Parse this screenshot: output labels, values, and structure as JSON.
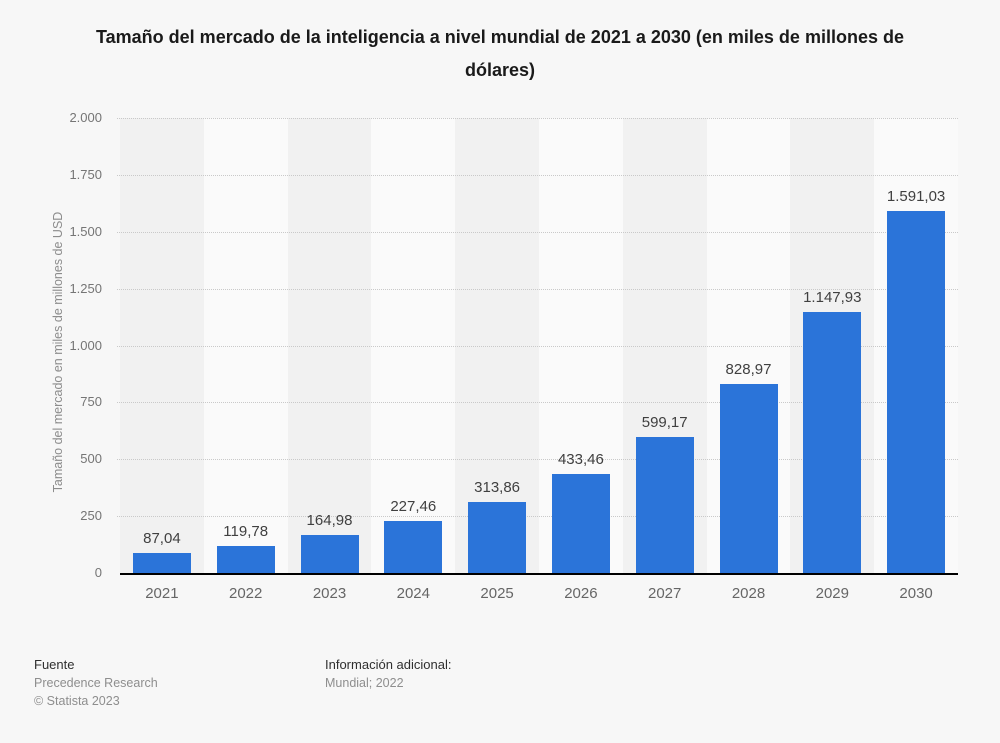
{
  "title": "Tamaño del mercado de la inteligencia a nivel mundial de 2021 a 2030 (en miles de millones de dólares)",
  "y_axis_title": "Tamaño del mercado en miles de millones de USD",
  "chart_data": {
    "type": "bar",
    "categories": [
      "2021",
      "2022",
      "2023",
      "2024",
      "2025",
      "2026",
      "2027",
      "2028",
      "2029",
      "2030"
    ],
    "values": [
      87.04,
      119.78,
      164.98,
      227.46,
      313.86,
      433.46,
      599.17,
      828.97,
      1147.93,
      1591.03
    ],
    "value_labels": [
      "87,04",
      "119,78",
      "164,98",
      "227,46",
      "313,86",
      "433,46",
      "599,17",
      "828,97",
      "1.147,93",
      "1.591,03"
    ],
    "title": "Tamaño del mercado de la inteligencia a nivel mundial de 2021 a 2030 (en miles de millones de dólares)",
    "xlabel": "",
    "ylabel": "Tamaño del mercado en miles de millones de USD",
    "ylim": [
      0,
      2000
    ],
    "y_ticks": [
      {
        "value": 2000,
        "label": "2.000"
      },
      {
        "value": 1750,
        "label": "1.750"
      },
      {
        "value": 1500,
        "label": "1.500"
      },
      {
        "value": 1250,
        "label": "1.250"
      },
      {
        "value": 1000,
        "label": "1.000"
      },
      {
        "value": 750,
        "label": "750"
      },
      {
        "value": 500,
        "label": "500"
      },
      {
        "value": 250,
        "label": "250"
      },
      {
        "value": 0,
        "label": "0"
      }
    ],
    "grid": "dotted-horizontal",
    "legend": "none",
    "bar_color": "#2b74d9",
    "stripe_color_even": "#f1f1f1",
    "stripe_color_odd": "#fafafa"
  },
  "footer": {
    "source_heading": "Fuente",
    "source_name": "Precedence Research",
    "copyright": "© Statista 2023",
    "info_heading": "Información adicional:",
    "info_value": "Mundial; 2022"
  },
  "colors": {
    "page_background": "#f7f7f7",
    "bar": "#2b74d9",
    "axis_line": "#000000",
    "gridline": "#c9c9c9",
    "title_text": "#1a1a1a",
    "tick_text": "#757575"
  }
}
